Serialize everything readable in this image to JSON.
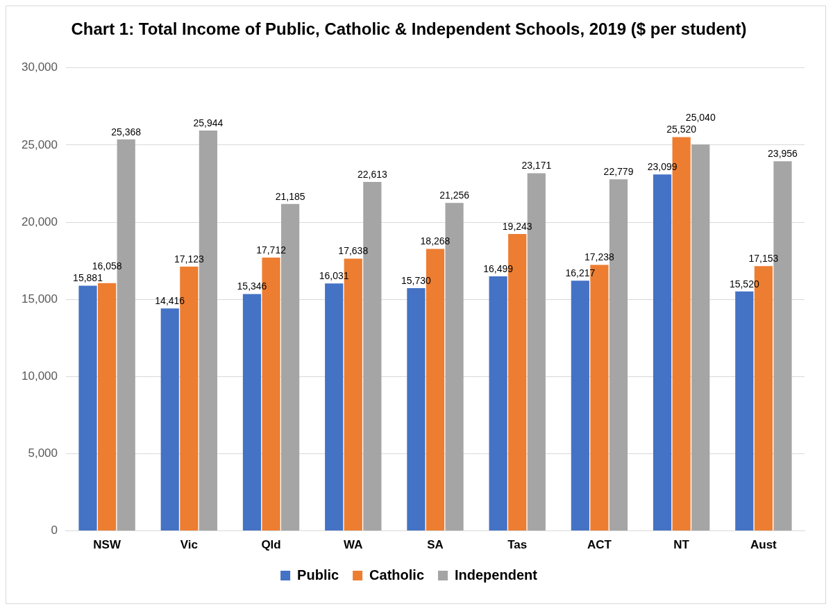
{
  "chart_data": {
    "type": "bar",
    "title": "Chart 1: Total Income of Public, Catholic & Independent Schools, 2019 ($ per student)",
    "categories": [
      "NSW",
      "Vic",
      "Qld",
      "WA",
      "SA",
      "Tas",
      "ACT",
      "NT",
      "Aust"
    ],
    "series": [
      {
        "name": "Public",
        "color": "#4472c4",
        "values": [
          15881,
          14416,
          15346,
          16031,
          15730,
          16499,
          16217,
          23099,
          15520
        ],
        "value_labels": [
          "15,881",
          "14,416",
          "15,346",
          "16,031",
          "15,730",
          "16,499",
          "16,217",
          "23,099",
          "15,520"
        ]
      },
      {
        "name": "Catholic",
        "color": "#ed7d31",
        "values": [
          16058,
          17123,
          17712,
          17638,
          18268,
          19243,
          17238,
          25520,
          17153
        ],
        "value_labels": [
          "16,058",
          "17,123",
          "17,712",
          "17,638",
          "18,268",
          "19,243",
          "17,238",
          "25,520",
          "17,153"
        ]
      },
      {
        "name": "Independent",
        "color": "#a5a5a5",
        "values": [
          25368,
          25944,
          21185,
          22613,
          21256,
          23171,
          22779,
          25040,
          23956
        ],
        "value_labels": [
          "25,368",
          "25,944",
          "21,185",
          "22,613",
          "21,256",
          "23,171",
          "22,779",
          "25,040",
          "23,956"
        ]
      }
    ],
    "ylim": [
      0,
      30000
    ],
    "yticks": [
      {
        "value": 0,
        "label": "0"
      },
      {
        "value": 5000,
        "label": "5,000"
      },
      {
        "value": 10000,
        "label": "10,000"
      },
      {
        "value": 15000,
        "label": "15,000"
      },
      {
        "value": 20000,
        "label": "20,000"
      },
      {
        "value": 25000,
        "label": "25,000"
      },
      {
        "value": 30000,
        "label": "30,000"
      }
    ],
    "grid": "y",
    "legend": "bottom"
  }
}
